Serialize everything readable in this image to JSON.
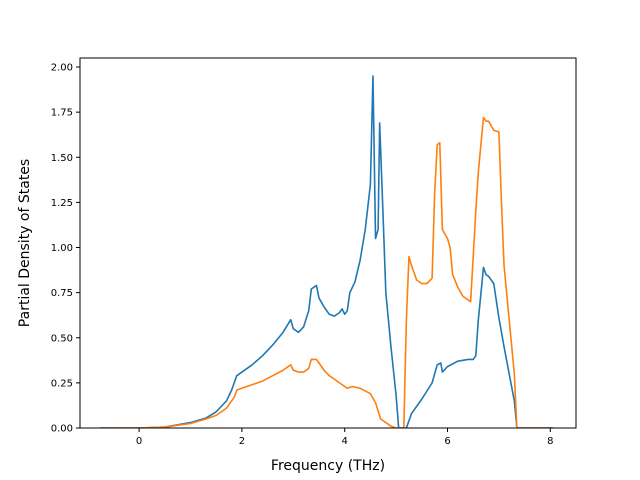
{
  "chart_data": {
    "type": "line",
    "title": "",
    "xlabel": "Frequency (THz)",
    "ylabel": "Partial Density of States",
    "xlim": [
      -1.15,
      8.5
    ],
    "ylim": [
      0,
      2.05
    ],
    "xticks": [
      0,
      2,
      4,
      6,
      8
    ],
    "xtick_labels": [
      "0",
      "2",
      "4",
      "6",
      "8"
    ],
    "yticks": [
      0,
      0.25,
      0.5,
      0.75,
      1.0,
      1.25,
      1.5,
      1.75,
      2.0
    ],
    "ytick_labels": [
      "0.00",
      "0.25",
      "0.50",
      "0.75",
      "1.00",
      "1.25",
      "1.50",
      "1.75",
      "2.00"
    ],
    "grid": false,
    "legend": null,
    "series": [
      {
        "color": "#1f77b4",
        "points": [
          [
            -0.75,
            0
          ],
          [
            0,
            0
          ],
          [
            0.5,
            0.005
          ],
          [
            1.0,
            0.03
          ],
          [
            1.3,
            0.055
          ],
          [
            1.5,
            0.09
          ],
          [
            1.7,
            0.15
          ],
          [
            1.8,
            0.21
          ],
          [
            1.9,
            0.29
          ],
          [
            2.0,
            0.31
          ],
          [
            2.2,
            0.35
          ],
          [
            2.4,
            0.4
          ],
          [
            2.6,
            0.46
          ],
          [
            2.8,
            0.53
          ],
          [
            2.95,
            0.6
          ],
          [
            3.0,
            0.55
          ],
          [
            3.1,
            0.53
          ],
          [
            3.2,
            0.56
          ],
          [
            3.3,
            0.65
          ],
          [
            3.35,
            0.77
          ],
          [
            3.45,
            0.79
          ],
          [
            3.5,
            0.72
          ],
          [
            3.6,
            0.67
          ],
          [
            3.7,
            0.63
          ],
          [
            3.8,
            0.62
          ],
          [
            3.9,
            0.64
          ],
          [
            3.95,
            0.66
          ],
          [
            4.0,
            0.63
          ],
          [
            4.05,
            0.65
          ],
          [
            4.1,
            0.75
          ],
          [
            4.2,
            0.81
          ],
          [
            4.3,
            0.93
          ],
          [
            4.4,
            1.1
          ],
          [
            4.5,
            1.35
          ],
          [
            4.55,
            1.95
          ],
          [
            4.6,
            1.05
          ],
          [
            4.65,
            1.1
          ],
          [
            4.68,
            1.69
          ],
          [
            4.75,
            1.15
          ],
          [
            4.8,
            0.75
          ],
          [
            4.9,
            0.45
          ],
          [
            5.0,
            0.18
          ],
          [
            5.05,
            0.0
          ],
          [
            5.2,
            0.0
          ],
          [
            5.3,
            0.08
          ],
          [
            5.5,
            0.16
          ],
          [
            5.7,
            0.25
          ],
          [
            5.8,
            0.35
          ],
          [
            5.87,
            0.36
          ],
          [
            5.9,
            0.31
          ],
          [
            6.0,
            0.34
          ],
          [
            6.2,
            0.37
          ],
          [
            6.4,
            0.38
          ],
          [
            6.5,
            0.38
          ],
          [
            6.55,
            0.4
          ],
          [
            6.6,
            0.6
          ],
          [
            6.7,
            0.89
          ],
          [
            6.75,
            0.85
          ],
          [
            6.8,
            0.84
          ],
          [
            6.85,
            0.82
          ],
          [
            6.9,
            0.8
          ],
          [
            7.0,
            0.61
          ],
          [
            7.1,
            0.45
          ],
          [
            7.2,
            0.3
          ],
          [
            7.3,
            0.15
          ],
          [
            7.35,
            0.0
          ],
          [
            8.05,
            0.0
          ]
        ]
      },
      {
        "color": "#ff7f0e",
        "points": [
          [
            -0.75,
            0
          ],
          [
            0,
            0
          ],
          [
            0.5,
            0.005
          ],
          [
            1.0,
            0.025
          ],
          [
            1.3,
            0.05
          ],
          [
            1.5,
            0.07
          ],
          [
            1.7,
            0.11
          ],
          [
            1.85,
            0.17
          ],
          [
            1.9,
            0.21
          ],
          [
            2.0,
            0.22
          ],
          [
            2.2,
            0.24
          ],
          [
            2.4,
            0.26
          ],
          [
            2.6,
            0.29
          ],
          [
            2.8,
            0.32
          ],
          [
            2.95,
            0.35
          ],
          [
            3.0,
            0.32
          ],
          [
            3.1,
            0.31
          ],
          [
            3.2,
            0.31
          ],
          [
            3.3,
            0.33
          ],
          [
            3.35,
            0.38
          ],
          [
            3.45,
            0.38
          ],
          [
            3.5,
            0.36
          ],
          [
            3.6,
            0.32
          ],
          [
            3.7,
            0.29
          ],
          [
            3.8,
            0.27
          ],
          [
            3.9,
            0.25
          ],
          [
            4.0,
            0.23
          ],
          [
            4.05,
            0.22
          ],
          [
            4.15,
            0.23
          ],
          [
            4.3,
            0.22
          ],
          [
            4.5,
            0.19
          ],
          [
            4.6,
            0.14
          ],
          [
            4.7,
            0.05
          ],
          [
            4.8,
            0.03
          ],
          [
            4.9,
            0.01
          ],
          [
            5.0,
            0.0
          ],
          [
            5.15,
            0.0
          ],
          [
            5.2,
            0.6
          ],
          [
            5.25,
            0.95
          ],
          [
            5.3,
            0.9
          ],
          [
            5.4,
            0.82
          ],
          [
            5.5,
            0.8
          ],
          [
            5.6,
            0.8
          ],
          [
            5.7,
            0.83
          ],
          [
            5.75,
            1.3
          ],
          [
            5.8,
            1.57
          ],
          [
            5.85,
            1.58
          ],
          [
            5.9,
            1.1
          ],
          [
            6.0,
            1.05
          ],
          [
            6.05,
            1.0
          ],
          [
            6.1,
            0.85
          ],
          [
            6.2,
            0.78
          ],
          [
            6.3,
            0.73
          ],
          [
            6.45,
            0.7
          ],
          [
            6.55,
            1.2
          ],
          [
            6.6,
            1.42
          ],
          [
            6.7,
            1.72
          ],
          [
            6.75,
            1.7
          ],
          [
            6.8,
            1.7
          ],
          [
            6.9,
            1.65
          ],
          [
            7.0,
            1.64
          ],
          [
            7.05,
            1.25
          ],
          [
            7.1,
            0.9
          ],
          [
            7.2,
            0.6
          ],
          [
            7.3,
            0.3
          ],
          [
            7.35,
            0.0
          ],
          [
            8.05,
            0.0
          ]
        ]
      }
    ]
  }
}
